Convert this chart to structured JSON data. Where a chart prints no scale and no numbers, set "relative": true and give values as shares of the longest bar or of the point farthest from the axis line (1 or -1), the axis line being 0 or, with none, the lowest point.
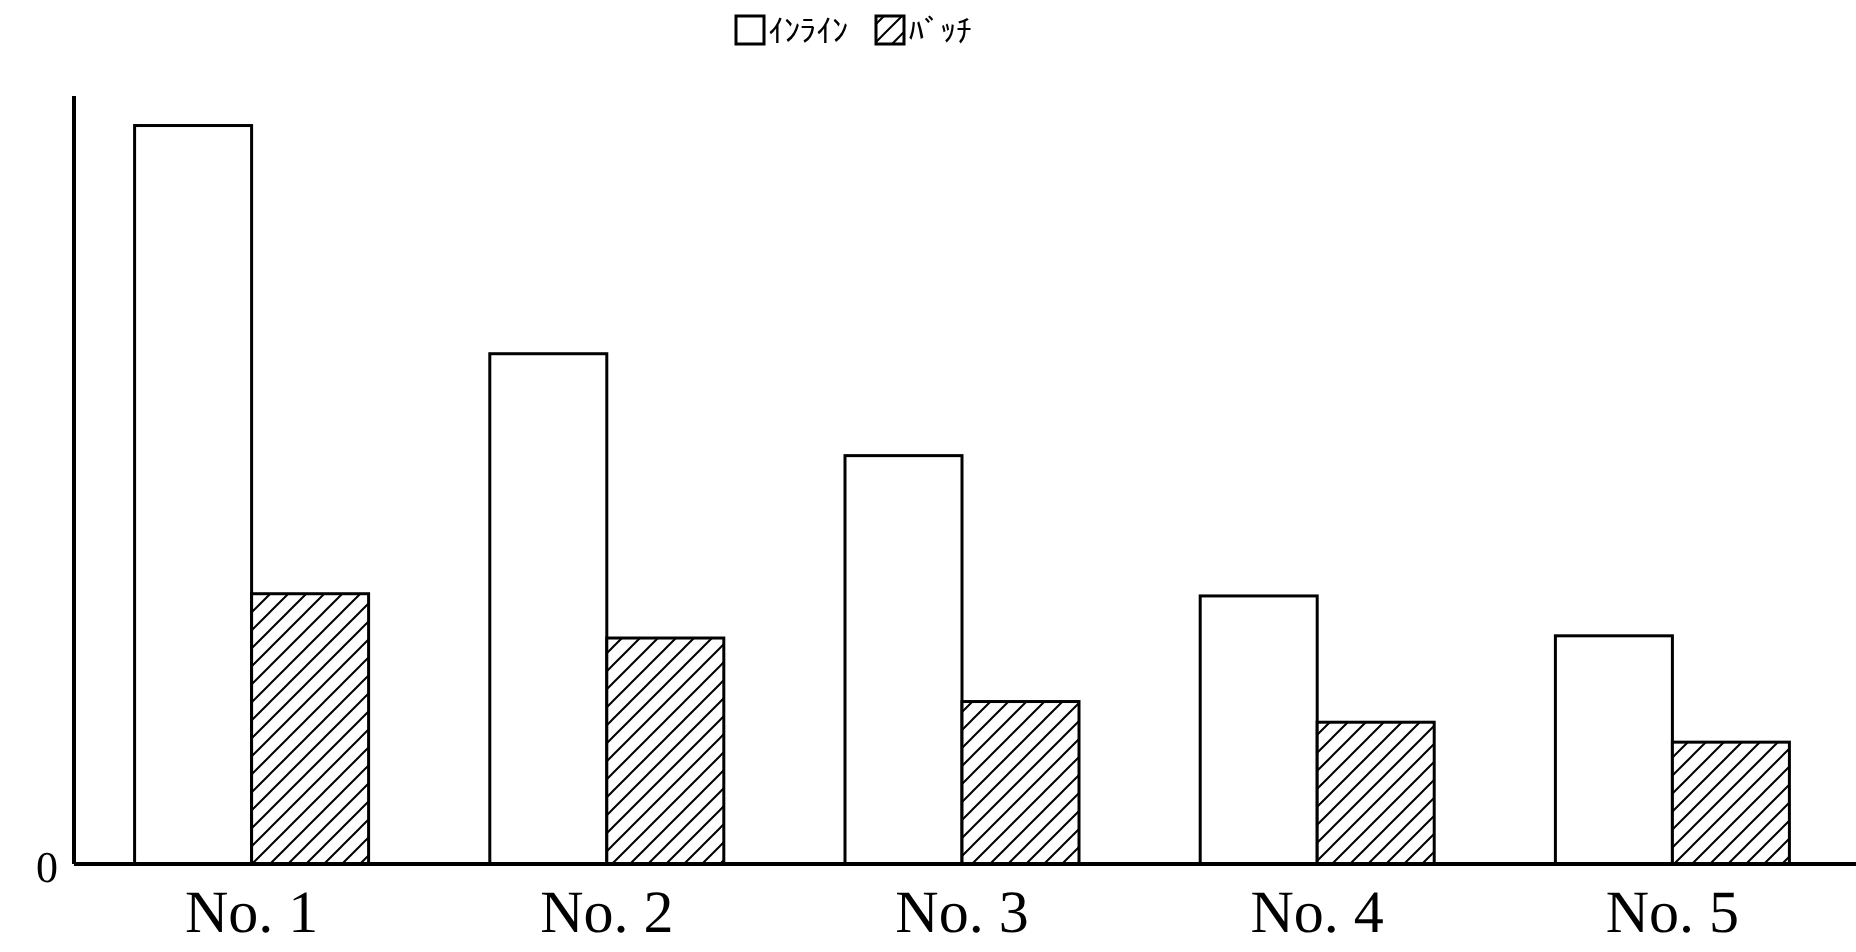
{
  "chart_data": {
    "type": "bar",
    "relative": true,
    "legend": "top",
    "categories": [
      "No. 1",
      "No. 2",
      "No. 3",
      "No. 4",
      "No. 5"
    ],
    "series": [
      {
        "name": "ｲﾝﾗｲﾝ",
        "color": "#ffffff",
        "values": [
          1,
          0.691,
          0.553,
          0.363,
          0.309
        ]
      },
      {
        "name": "ﾊﾞｯﾁ",
        "color": "#000000",
        "values": [
          0.366,
          0.306,
          0.22,
          0.192,
          0.165
        ]
      }
    ],
    "annotations": [
      "0"
    ]
  }
}
